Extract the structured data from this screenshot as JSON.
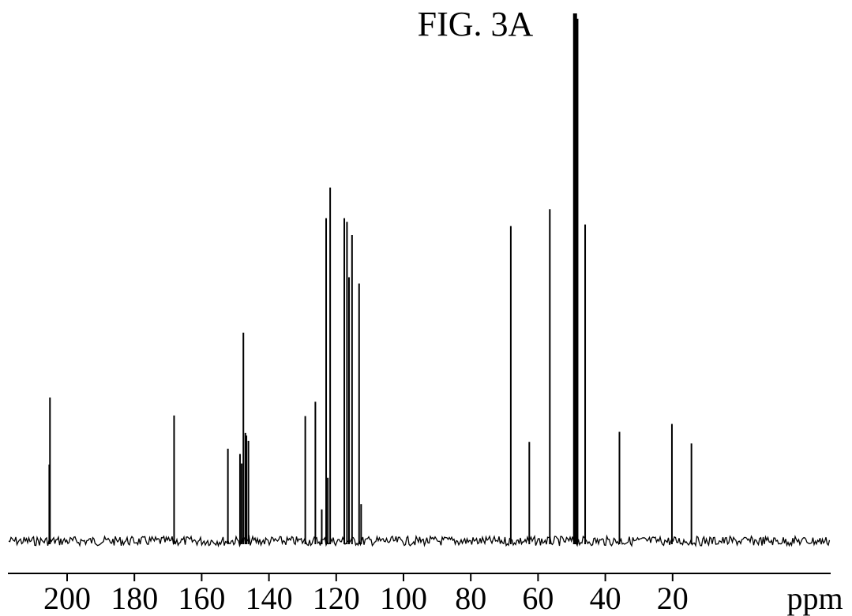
{
  "chart_data": {
    "type": "line",
    "subtype": "nmr-stick-spectrum",
    "title": "FIG. 3A",
    "xlabel": "ppm",
    "xlim": [
      222,
      0
    ],
    "x_reversed": true,
    "xticks": [
      200,
      180,
      160,
      140,
      120,
      100,
      80,
      60,
      40,
      20
    ],
    "tick_labels": [
      "200",
      "180",
      "160",
      "140",
      "120",
      "100",
      "80",
      "60",
      "40",
      "20"
    ],
    "y_axis_shown": false,
    "grid": false,
    "line_color": "#000000",
    "peaks": [
      {
        "ppm": 205.1,
        "height": 0.272
      },
      {
        "ppm": 205.3,
        "height": 0.145
      },
      {
        "ppm": 168.2,
        "height": 0.238
      },
      {
        "ppm": 152.2,
        "height": 0.175
      },
      {
        "ppm": 148.6,
        "height": 0.165
      },
      {
        "ppm": 148.1,
        "height": 0.147
      },
      {
        "ppm": 147.6,
        "height": 0.395
      },
      {
        "ppm": 147.0,
        "height": 0.205
      },
      {
        "ppm": 146.7,
        "height": 0.2
      },
      {
        "ppm": 146.1,
        "height": 0.19
      },
      {
        "ppm": 129.2,
        "height": 0.237
      },
      {
        "ppm": 126.2,
        "height": 0.264
      },
      {
        "ppm": 124.3,
        "height": 0.06
      },
      {
        "ppm": 123.0,
        "height": 0.612
      },
      {
        "ppm": 122.5,
        "height": 0.12
      },
      {
        "ppm": 121.8,
        "height": 0.67
      },
      {
        "ppm": 117.6,
        "height": 0.612
      },
      {
        "ppm": 116.8,
        "height": 0.605
      },
      {
        "ppm": 116.2,
        "height": 0.5
      },
      {
        "ppm": 115.3,
        "height": 0.58
      },
      {
        "ppm": 113.2,
        "height": 0.488
      },
      {
        "ppm": 112.6,
        "height": 0.07
      },
      {
        "ppm": 68.1,
        "height": 0.597
      },
      {
        "ppm": 62.6,
        "height": 0.188
      },
      {
        "ppm": 56.5,
        "height": 0.629
      },
      {
        "ppm": 49.0,
        "height": 1.0
      },
      {
        "ppm": 48.6,
        "height": 0.99
      },
      {
        "ppm": 46.0,
        "height": 0.6
      },
      {
        "ppm": 35.8,
        "height": 0.207
      },
      {
        "ppm": 20.2,
        "height": 0.222
      },
      {
        "ppm": 14.4,
        "height": 0.185
      }
    ]
  }
}
